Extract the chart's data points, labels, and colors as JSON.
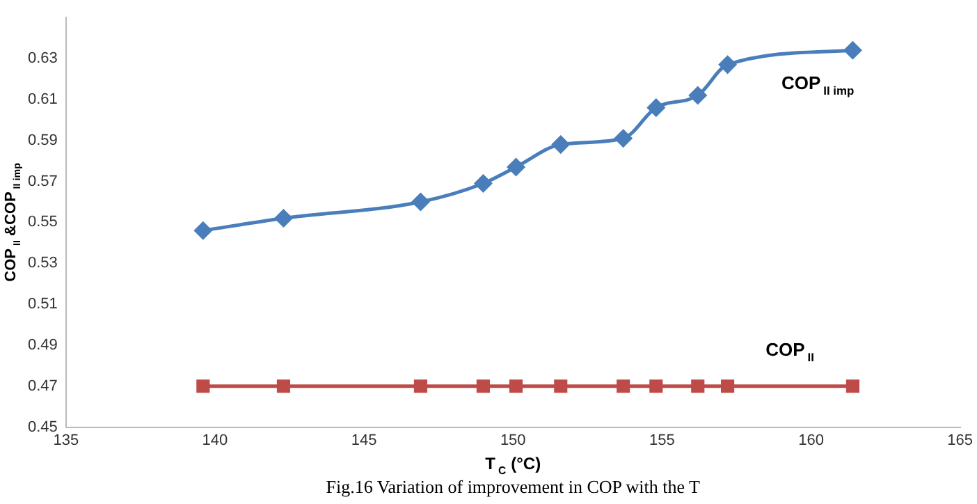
{
  "chart_data": {
    "type": "line",
    "xlabel": "T$_{C}$ (°C)",
    "ylabel": "COP$_{II}$ &COP$_{II imp}$",
    "x": [
      139.6,
      142.3,
      146.9,
      149.0,
      150.1,
      151.6,
      153.7,
      154.8,
      156.2,
      157.2,
      161.4
    ],
    "series": [
      {
        "name": "COP$_{II imp}$",
        "color": "#4a7ebb",
        "marker": "diamond",
        "values": [
          0.546,
          0.552,
          0.56,
          0.569,
          0.577,
          0.588,
          0.591,
          0.606,
          0.612,
          0.627,
          0.634
        ]
      },
      {
        "name": "COP$_{II}$",
        "color": "#be4b48",
        "marker": "square",
        "values": [
          0.47,
          0.47,
          0.47,
          0.47,
          0.47,
          0.47,
          0.47,
          0.47,
          0.47,
          0.47,
          0.47
        ]
      }
    ],
    "xlim": [
      135,
      165
    ],
    "xticks": [
      135,
      140,
      145,
      150,
      155,
      160,
      165
    ],
    "ylim": [
      0.45,
      0.65
    ],
    "yticks": [
      0.45,
      0.47,
      0.49,
      0.51,
      0.53,
      0.55,
      0.57,
      0.59,
      0.61,
      0.63
    ],
    "grid": false,
    "legend": false,
    "annotations": [
      "Fig.16 Variation of improvement in COP with the T"
    ]
  }
}
